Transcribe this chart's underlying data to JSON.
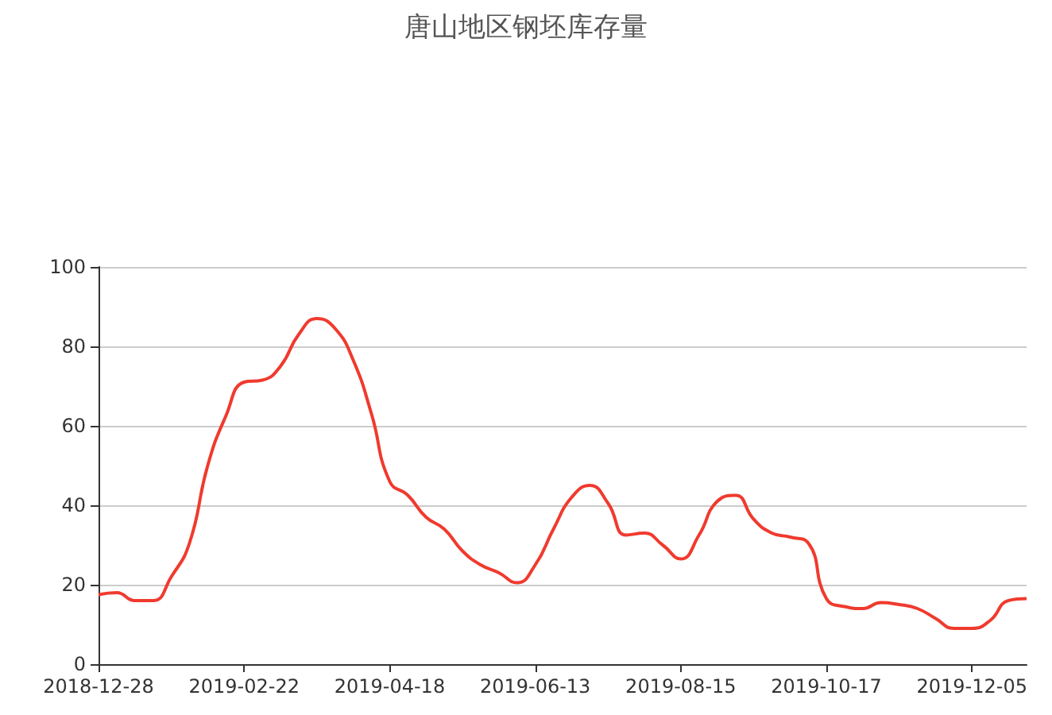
{
  "chart_data": {
    "type": "line",
    "title": "唐山地区钢坯库存量",
    "categories": [
      "2018-12-28",
      null,
      null,
      null,
      null,
      null,
      null,
      null,
      "2019-02-22",
      null,
      null,
      null,
      null,
      null,
      null,
      null,
      "2019-04-18",
      null,
      null,
      null,
      null,
      null,
      null,
      null,
      "2019-06-13",
      null,
      null,
      null,
      null,
      null,
      null,
      null,
      "2019-08-15",
      null,
      null,
      null,
      null,
      null,
      null,
      null,
      "2019-10-17",
      null,
      null,
      null,
      null,
      null,
      null,
      null,
      "2019-12-05",
      null,
      null,
      null
    ],
    "series": [
      {
        "color": "#f03a2e",
        "values": [
          17.5,
          18,
          16,
          16,
          22,
          30.5,
          50,
          62.5,
          71,
          71.5,
          75,
          83,
          87,
          84.5,
          76.5,
          63,
          46,
          42.5,
          37,
          34,
          28.5,
          25,
          23,
          20.5,
          25,
          34,
          42,
          45,
          40.5,
          32.5,
          33,
          30,
          26.5,
          32.5,
          41,
          42.5,
          36.5,
          33,
          32,
          30.5,
          16.5,
          14.5,
          14,
          15.5,
          15,
          14,
          11.5,
          9,
          9,
          11,
          16,
          16.5
        ]
      }
    ],
    "ylim": [
      0,
      100
    ],
    "yticks": [
      0,
      20,
      40,
      60,
      80,
      100
    ],
    "grid": "y",
    "line_style": "solid"
  }
}
